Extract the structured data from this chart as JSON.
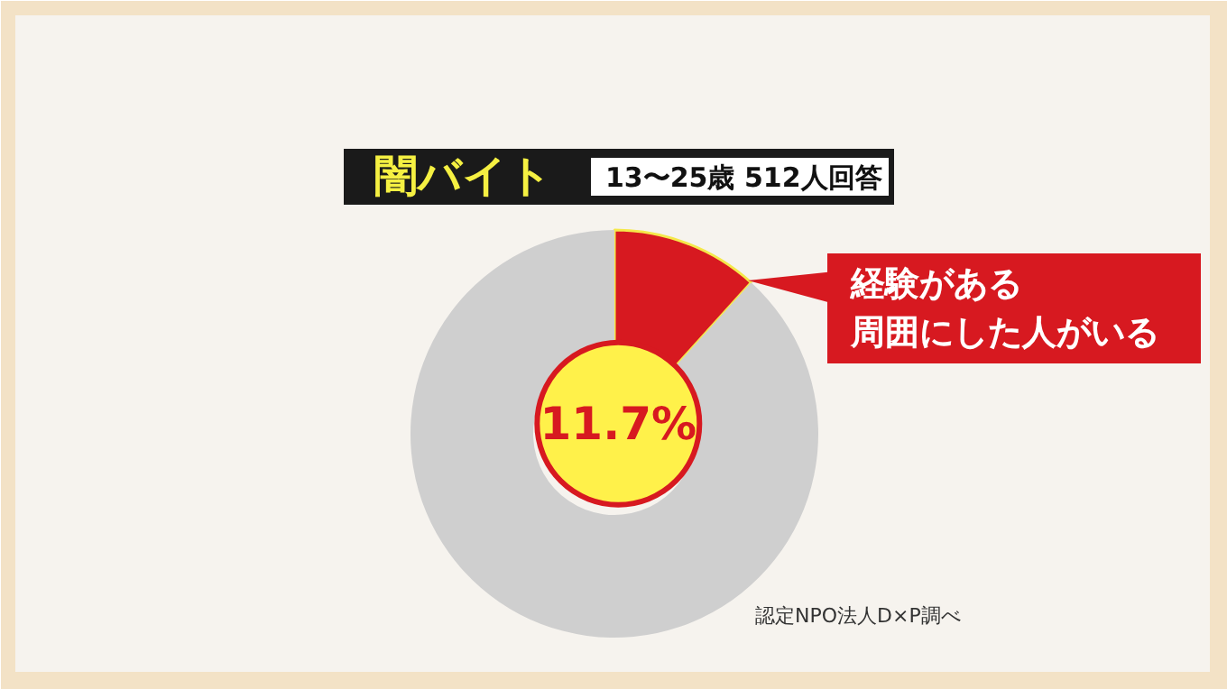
{
  "chart_data": {
    "type": "donut",
    "title": "闇バイト",
    "subtitle": "13〜25歳 512人回答",
    "categories": [
      "経験がある周囲にした人がいる",
      null
    ],
    "values": [
      11.7,
      88.3
    ],
    "colors": [
      "#d71920",
      "#cfcfcf"
    ],
    "value_labels": [
      "11.7%",
      null
    ],
    "annotations": [
      "認定NPO法人D×P調べ"
    ]
  }
}
